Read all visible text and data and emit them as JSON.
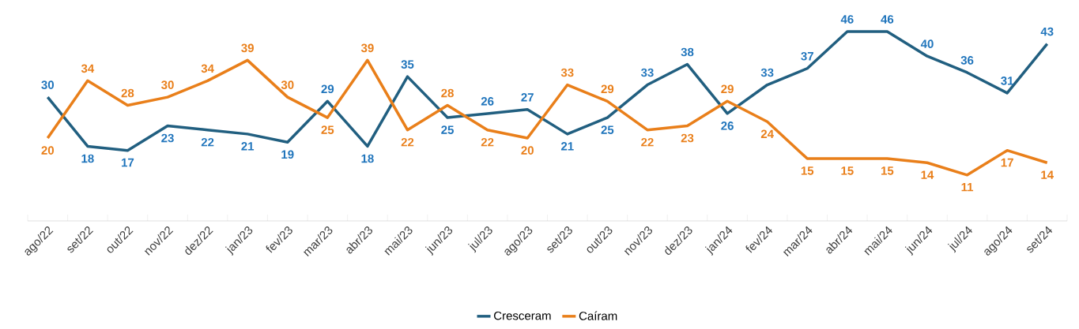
{
  "chart_data": {
    "type": "line",
    "categories": [
      "ago/22",
      "set/22",
      "out/22",
      "nov/22",
      "dez/22",
      "jan/23",
      "fev/23",
      "mar/23",
      "abr/23",
      "mai/23",
      "jun/23",
      "jul/23",
      "ago/23",
      "set/23",
      "out/23",
      "nov/23",
      "dez/23",
      "jan/24",
      "fev/24",
      "mar/24",
      "abr/24",
      "mai/24",
      "jun/24",
      "jul/24",
      "ago/24",
      "set/24"
    ],
    "series": [
      {
        "name": "Cresceram",
        "color": "#215f80",
        "values": [
          30,
          18,
          17,
          23,
          22,
          21,
          19,
          29,
          18,
          35,
          25,
          26,
          27,
          21,
          25,
          33,
          38,
          26,
          33,
          37,
          46,
          46,
          40,
          36,
          31,
          43
        ]
      },
      {
        "name": "Caíram",
        "color": "#e97f1a",
        "values": [
          20,
          34,
          28,
          30,
          34,
          39,
          30,
          25,
          39,
          22,
          28,
          22,
          20,
          33,
          29,
          22,
          23,
          29,
          24,
          15,
          15,
          15,
          14,
          11,
          17,
          14
        ]
      }
    ],
    "tick_labels": "x",
    "data_labels": true,
    "legend": "bottom",
    "grid": false,
    "marker": "none"
  }
}
